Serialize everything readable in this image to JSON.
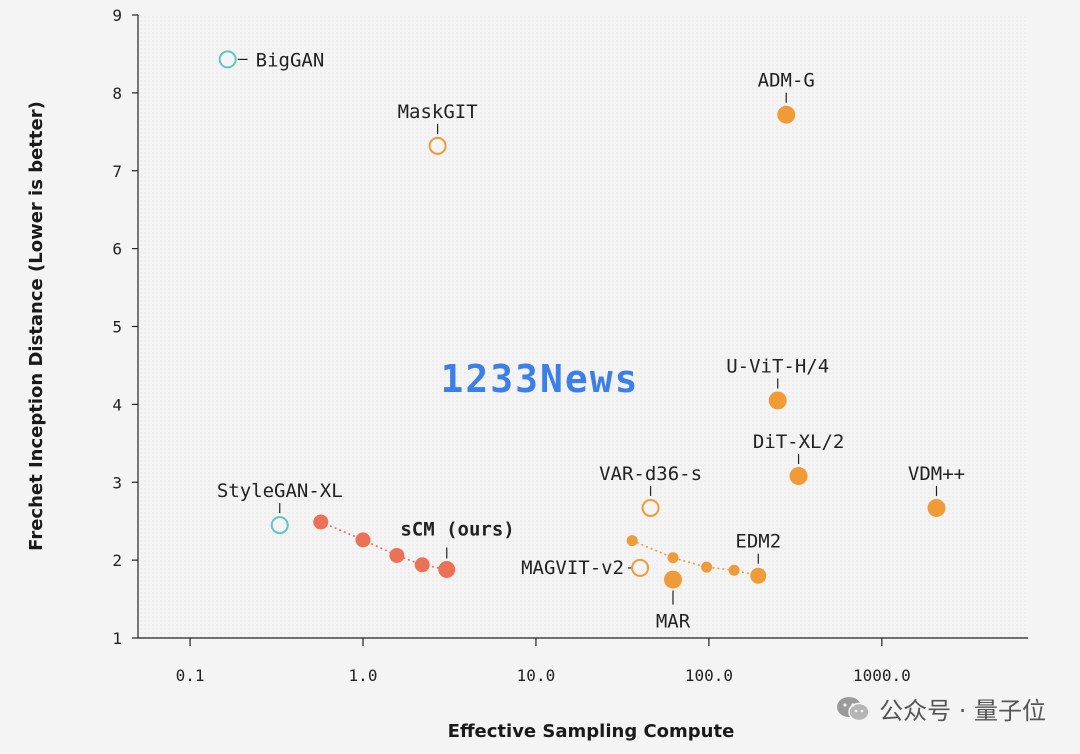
{
  "chart_data": {
    "type": "scatter",
    "xlabel": "Effective Sampling Compute",
    "ylabel": "Frechet Inception Distance (Lower is better)",
    "xscale": "log",
    "xlim": [
      0.05,
      7000
    ],
    "ylim": [
      1,
      9
    ],
    "xticks": [
      {
        "value": 0.1,
        "label": "0.1"
      },
      {
        "value": 1,
        "label": "1.0"
      },
      {
        "value": 10,
        "label": "10.0"
      },
      {
        "value": 100,
        "label": "100.0"
      },
      {
        "value": 1000,
        "label": "1000.0"
      }
    ],
    "yticks": [
      {
        "value": 1,
        "label": "1"
      },
      {
        "value": 2,
        "label": "2"
      },
      {
        "value": 3,
        "label": "3"
      },
      {
        "value": 4,
        "label": "4"
      },
      {
        "value": 5,
        "label": "5"
      },
      {
        "value": 6,
        "label": "6"
      },
      {
        "value": 7,
        "label": "7"
      },
      {
        "value": 8,
        "label": "8"
      },
      {
        "value": 9,
        "label": "9"
      }
    ],
    "grid": false,
    "colors": {
      "teal": "#5ec8c0",
      "orange": "#f09a38",
      "coral": "#ec7257"
    },
    "points": [
      {
        "label": "BigGAN",
        "x": 0.165,
        "y": 8.43,
        "color": "#5ec8c0",
        "filled": false,
        "size": 8
      },
      {
        "label": "StyleGAN-XL",
        "x": 0.33,
        "y": 2.45,
        "color": "#5ec8c0",
        "filled": false,
        "size": 8
      },
      {
        "label": "MaskGIT",
        "x": 2.7,
        "y": 7.32,
        "color": "#f09a38",
        "filled": false,
        "size": 8
      },
      {
        "label": "ADM-G",
        "x": 280,
        "y": 7.72,
        "color": "#f09a38",
        "filled": true,
        "size": 9
      },
      {
        "label": "U-ViT-H/4",
        "x": 250,
        "y": 4.05,
        "color": "#f09a38",
        "filled": true,
        "size": 9
      },
      {
        "label": "DiT-XL/2",
        "x": 330,
        "y": 3.08,
        "color": "#f09a38",
        "filled": true,
        "size": 9
      },
      {
        "label": "VDM++",
        "x": 2070,
        "y": 2.67,
        "color": "#f09a38",
        "filled": true,
        "size": 9
      },
      {
        "label": "VAR-d36-s",
        "x": 46,
        "y": 2.67,
        "color": "#f09a38",
        "filled": false,
        "size": 8
      },
      {
        "label": "MAGVIT-v2",
        "x": 40,
        "y": 1.9,
        "color": "#f09a38",
        "filled": false,
        "size": 8
      },
      {
        "label": "MAR",
        "x": 62,
        "y": 1.75,
        "color": "#f09a38",
        "filled": true,
        "size": 9
      },
      {
        "label": "EDM2",
        "x": 193,
        "y": 1.8,
        "color": "#f09a38",
        "filled": true,
        "size": 8
      }
    ],
    "series": [
      {
        "name": "sCM (ours)",
        "color": "#ec7257",
        "x": [
          0.57,
          1.0,
          1.57,
          2.2,
          3.05
        ],
        "y": [
          2.49,
          2.26,
          2.06,
          1.94,
          1.88
        ]
      },
      {
        "name": "",
        "color": "#f09a38",
        "x": [
          36,
          62,
          97,
          140,
          193
        ],
        "y": [
          2.25,
          2.03,
          1.91,
          1.87,
          1.8
        ]
      }
    ]
  },
  "watermark": {
    "text": "1233News"
  },
  "brand": {
    "text": "公众号 · 量子位",
    "icon": "wechat-icon"
  }
}
